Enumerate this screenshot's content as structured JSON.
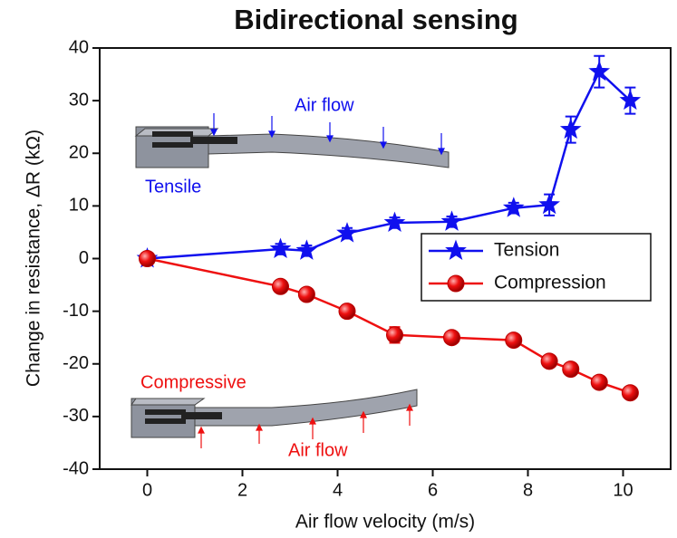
{
  "chart_data": {
    "type": "line",
    "title": "Bidirectional sensing",
    "x_label": "Air flow velocity (m/s)",
    "y_label": "Change in resistance, ΔR (kΩ)",
    "x": [
      0,
      2.8,
      3.35,
      4.2,
      5.2,
      6.4,
      7.7,
      8.45,
      8.9,
      9.5,
      10.15
    ],
    "series": [
      {
        "name": "Tension",
        "color": "#1010ee",
        "marker": "star",
        "values": [
          0,
          1.8,
          1.5,
          4.8,
          6.8,
          7,
          9.6,
          10.2,
          24.5,
          35.5,
          30
        ],
        "errors": [
          0.8,
          1,
          1,
          1,
          1,
          1,
          1,
          2,
          2.5,
          3,
          2.5
        ]
      },
      {
        "name": "Compression",
        "color": "#ee1010",
        "marker": "circle",
        "values": [
          0,
          -5.3,
          -6.8,
          -10,
          -14.5,
          -15,
          -15.5,
          -19.5,
          -21,
          -23.5,
          -25.5
        ],
        "errors": [
          0.8,
          1,
          1,
          1,
          1.5,
          1,
          1,
          1,
          1,
          1,
          1
        ]
      }
    ],
    "annotations": [
      {
        "text": "Air flow",
        "color": "#1010ee"
      },
      {
        "text": "Tensile",
        "color": "#1010ee"
      },
      {
        "text": "Compressive",
        "color": "#ee1010"
      },
      {
        "text": "Air flow",
        "color": "#ee1010"
      }
    ],
    "xlim": [
      -1,
      11
    ],
    "xticks": [
      0,
      2,
      4,
      6,
      8,
      10
    ],
    "ylim": [
      -40,
      40
    ],
    "yticks": [
      -40,
      -30,
      -20,
      -10,
      0,
      10,
      20,
      30,
      40
    ],
    "legend": "right"
  }
}
